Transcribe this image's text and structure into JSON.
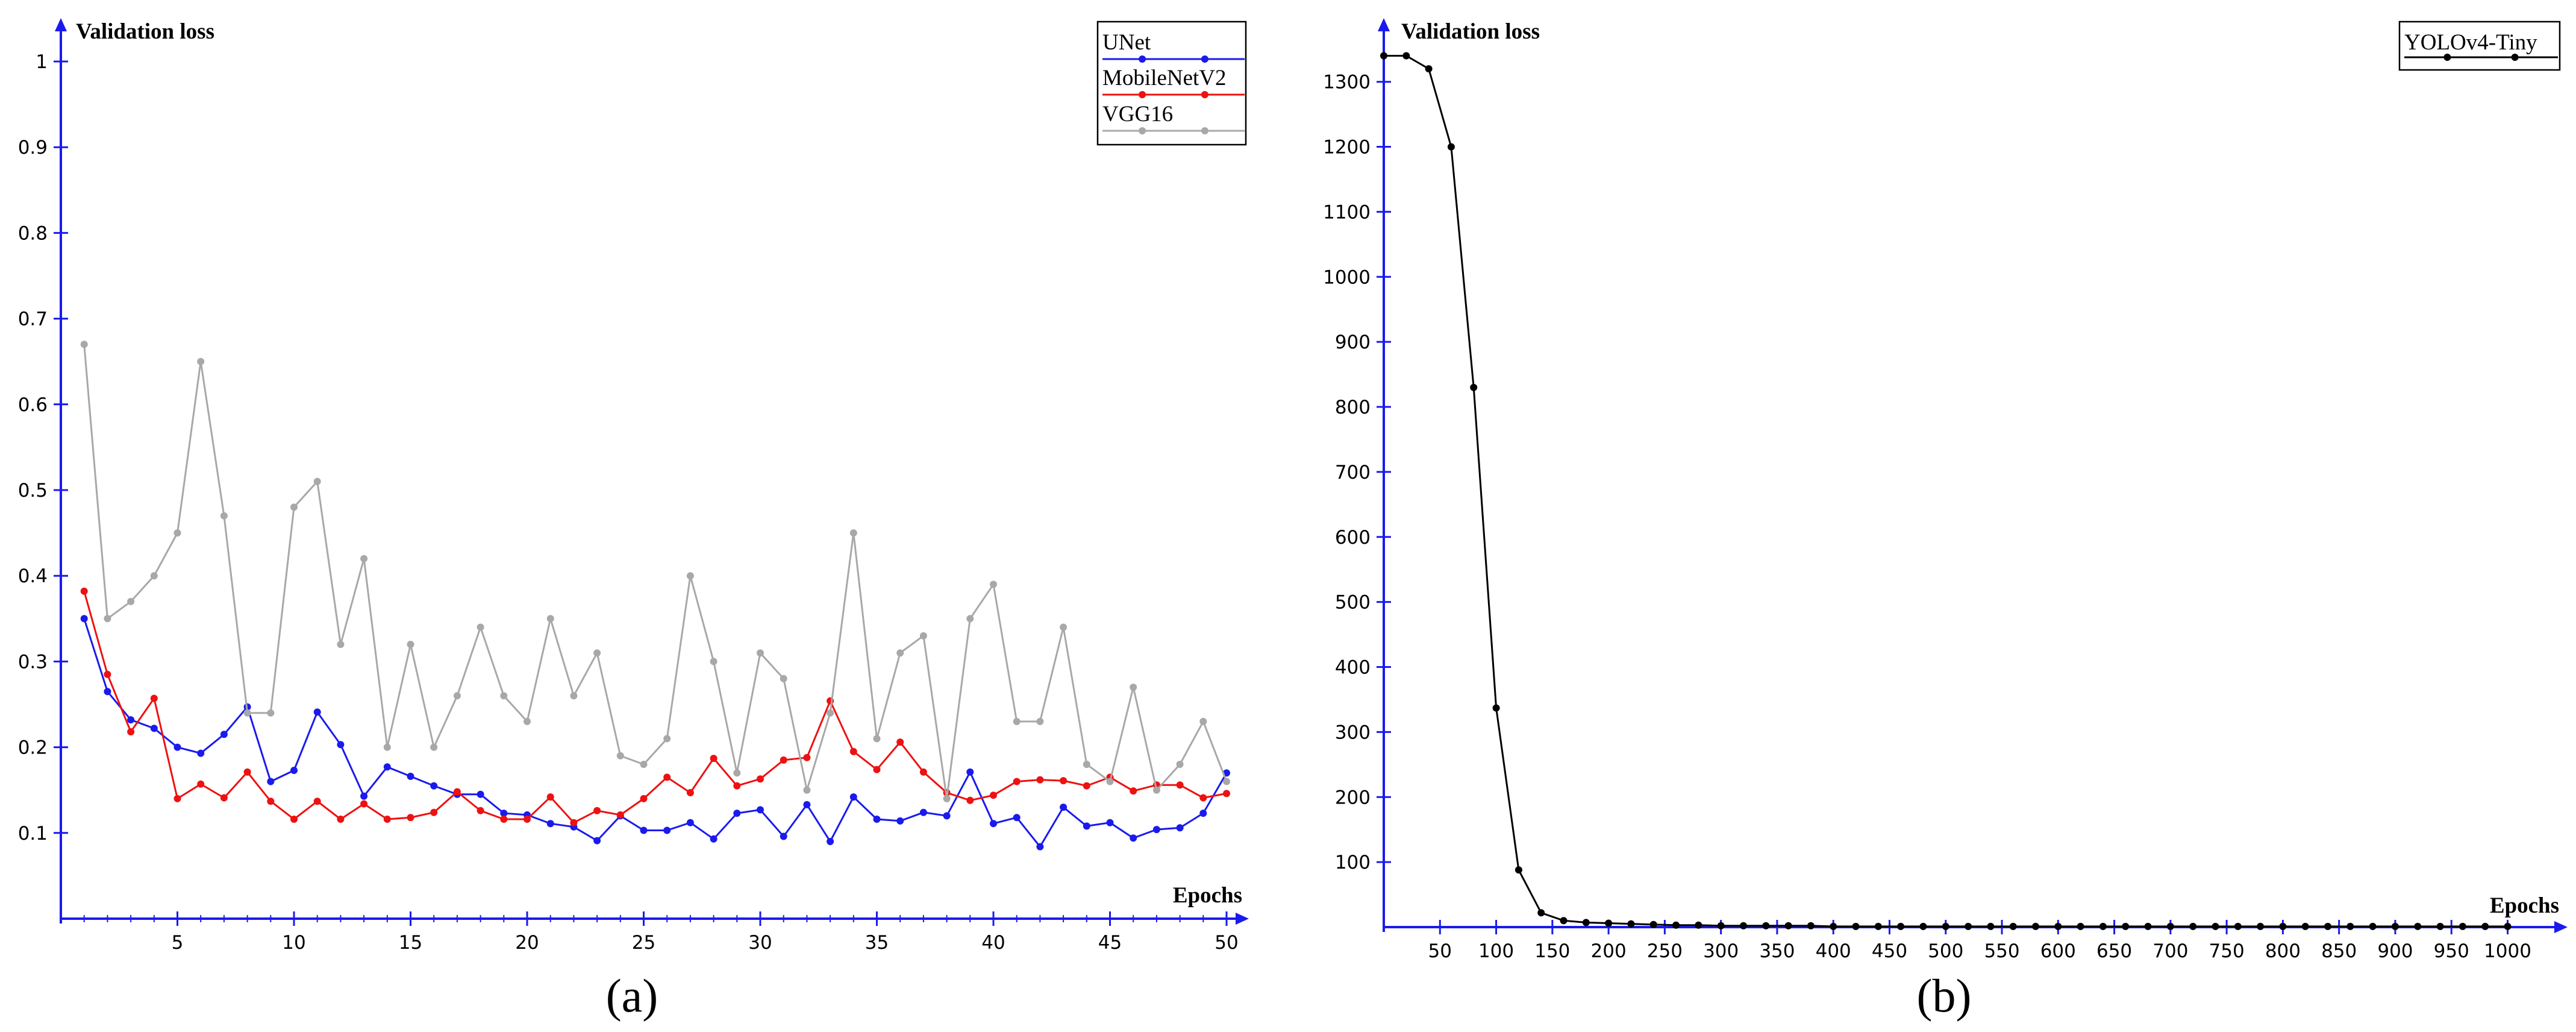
{
  "chart_data": [
    {
      "id": "a",
      "type": "line",
      "caption": "(a)",
      "ylabel": "Validation loss",
      "xlabel": "Epochs",
      "xlim": [
        0,
        50.8
      ],
      "ylim": [
        0,
        1.04
      ],
      "xticks": [
        5,
        10,
        15,
        20,
        25,
        30,
        35,
        40,
        45,
        50
      ],
      "yticks": [
        0.1,
        0.2,
        0.3,
        0.4,
        0.5,
        0.6,
        0.7,
        0.8,
        0.9,
        1
      ],
      "ytick_labels": [
        "0.1",
        "0.2",
        "0.3",
        "0.4",
        "0.5",
        "0.6",
        "0.7",
        "0.8",
        "0.9",
        "1"
      ],
      "legend_position": "top-right",
      "x": [
        1,
        2,
        3,
        4,
        5,
        6,
        7,
        8,
        9,
        10,
        11,
        12,
        13,
        14,
        15,
        16,
        17,
        18,
        19,
        20,
        21,
        22,
        23,
        24,
        25,
        26,
        27,
        28,
        29,
        30,
        31,
        32,
        33,
        34,
        35,
        36,
        37,
        38,
        39,
        40,
        41,
        42,
        43,
        44,
        45,
        46,
        47,
        48,
        49,
        50
      ],
      "series": [
        {
          "name": "UNet",
          "color": "#1a1aee",
          "values": [
            0.35,
            0.265,
            0.232,
            0.222,
            0.2,
            0.193,
            0.215,
            0.247,
            0.16,
            0.173,
            0.241,
            0.203,
            0.143,
            0.177,
            0.166,
            0.155,
            0.145,
            0.145,
            0.123,
            0.121,
            0.111,
            0.107,
            0.091,
            0.12,
            0.103,
            0.103,
            0.112,
            0.093,
            0.123,
            0.127,
            0.096,
            0.133,
            0.09,
            0.142,
            0.116,
            0.114,
            0.124,
            0.12,
            0.171,
            0.111,
            0.118,
            0.084,
            0.13,
            0.108,
            0.112,
            0.094,
            0.104,
            0.106,
            0.123,
            0.17
          ]
        },
        {
          "name": "MobileNetV2",
          "color": "#ee1111",
          "values": [
            0.382,
            0.285,
            0.218,
            0.257,
            0.14,
            0.157,
            0.141,
            0.171,
            0.137,
            0.116,
            0.137,
            0.116,
            0.134,
            0.116,
            0.118,
            0.124,
            0.148,
            0.126,
            0.116,
            0.116,
            0.142,
            0.112,
            0.126,
            0.121,
            0.14,
            0.165,
            0.147,
            0.187,
            0.155,
            0.163,
            0.185,
            0.188,
            0.254,
            0.195,
            0.174,
            0.206,
            0.171,
            0.147,
            0.138,
            0.144,
            0.16,
            0.162,
            0.161,
            0.155,
            0.165,
            0.149,
            0.156,
            0.156,
            0.141,
            0.146
          ]
        },
        {
          "name": "VGG16",
          "color": "#a8a8a8",
          "values": [
            0.67,
            0.35,
            0.37,
            0.4,
            0.45,
            0.65,
            0.47,
            0.24,
            0.24,
            0.48,
            0.51,
            0.32,
            0.42,
            0.2,
            0.32,
            0.2,
            0.26,
            0.34,
            0.26,
            0.23,
            0.35,
            0.26,
            0.31,
            0.19,
            0.18,
            0.21,
            0.4,
            0.3,
            0.17,
            0.31,
            0.28,
            0.15,
            0.24,
            0.45,
            0.21,
            0.31,
            0.33,
            0.14,
            0.35,
            0.39,
            0.23,
            0.23,
            0.34,
            0.18,
            0.16,
            0.27,
            0.15,
            0.18,
            0.23,
            0.16
          ]
        }
      ]
    },
    {
      "id": "b",
      "type": "line",
      "caption": "(b)",
      "ylabel": "Validation loss",
      "xlabel": "Epochs",
      "xlim": [
        0,
        1040
      ],
      "ylim": [
        0,
        1380
      ],
      "xticks": [
        50,
        100,
        150,
        200,
        250,
        300,
        350,
        400,
        450,
        500,
        550,
        600,
        650,
        700,
        750,
        800,
        850,
        900,
        950,
        1000
      ],
      "yticks": [
        100,
        200,
        300,
        400,
        500,
        600,
        700,
        800,
        900,
        1000,
        1100,
        1200,
        1300
      ],
      "legend_position": "top-right",
      "x": [
        0,
        20,
        40,
        60,
        80,
        100,
        120,
        140,
        160,
        180,
        200,
        220,
        240,
        260,
        280,
        300,
        320,
        340,
        360,
        380,
        400,
        420,
        440,
        460,
        480,
        500,
        520,
        540,
        560,
        580,
        600,
        620,
        640,
        660,
        680,
        700,
        720,
        740,
        760,
        780,
        800,
        820,
        840,
        860,
        880,
        900,
        920,
        940,
        960,
        980,
        1000
      ],
      "series": [
        {
          "name": "YOLOv4-Tiny",
          "color": "#000000",
          "values": [
            1340,
            1340,
            1320,
            1200,
            830,
            337,
            88,
            22,
            10,
            7,
            6,
            5,
            4,
            3,
            3,
            2,
            2,
            2,
            2,
            2,
            1,
            1,
            1,
            1,
            1,
            1,
            1,
            1,
            1,
            1,
            1,
            1,
            1,
            1,
            1,
            1,
            1,
            1,
            1,
            1,
            1,
            1,
            1,
            1,
            1,
            1,
            1,
            1,
            1,
            1,
            1
          ]
        }
      ]
    }
  ]
}
